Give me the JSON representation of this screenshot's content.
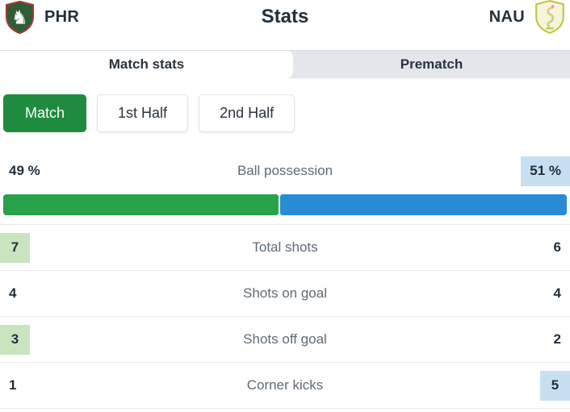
{
  "header": {
    "title": "Stats",
    "home_team": "PHR",
    "away_team": "NAU"
  },
  "tabs": {
    "match_stats": "Match stats",
    "prematch": "Prematch"
  },
  "filters": {
    "match": "Match",
    "first_half": "1st Half",
    "second_half": "2nd Half"
  },
  "possession": {
    "label": "Ball possession",
    "home_value": "49 %",
    "away_value": "51 %",
    "home_pct": 49,
    "away_pct": 51,
    "highlight": "away"
  },
  "stats": [
    {
      "label": "Total shots",
      "home": "7",
      "away": "6",
      "highlight": "home"
    },
    {
      "label": "Shots on goal",
      "home": "4",
      "away": "4",
      "highlight": "none"
    },
    {
      "label": "Shots off goal",
      "home": "3",
      "away": "2",
      "highlight": "home"
    },
    {
      "label": "Corner kicks",
      "home": "1",
      "away": "5",
      "highlight": "away"
    }
  ],
  "colors": {
    "home_bar": "#27a24b",
    "away_bar": "#298bd4",
    "home_highlight": "#c9e5bf",
    "away_highlight": "#c6e0f1",
    "active_filter": "#1f8b3e",
    "tab_inactive_bg": "#e3e6ea"
  }
}
